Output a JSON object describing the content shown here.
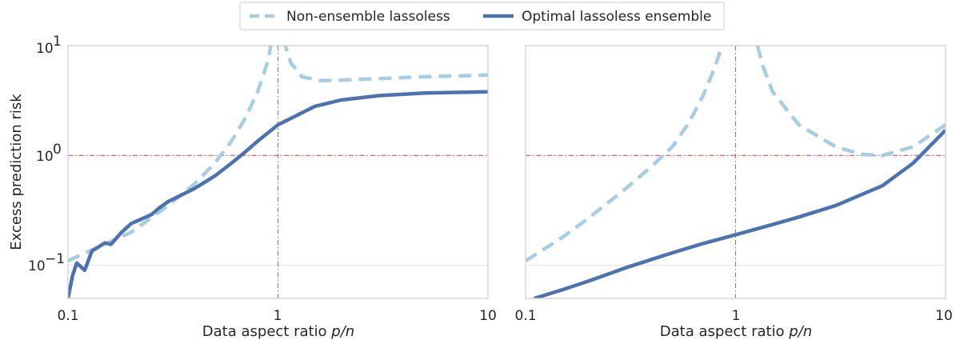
{
  "chart_data": [
    {
      "type": "line",
      "xscale": "log",
      "yscale": "log",
      "xlim": [
        0.1,
        10
      ],
      "ylim": [
        0.05,
        10
      ],
      "xlabel": "Data aspect ratio p/n",
      "ylabel": "Excess prediction risk",
      "x_ticks": [
        "0.1",
        "1",
        "10"
      ],
      "y_ticks": [
        "10^-1",
        "10^0",
        "10^1"
      ],
      "reference_lines": {
        "x": 1,
        "y": 1,
        "color": "#e05555"
      },
      "grid": true,
      "series": [
        {
          "name": "Non-ensemble lassoless",
          "style": "dashed",
          "color": "#a6cde2",
          "x": [
            0.1,
            0.2,
            0.3,
            0.4,
            0.5,
            0.6,
            0.7,
            0.8,
            0.9,
            0.95,
            1.05,
            1.15,
            1.3,
            1.6,
            2,
            3,
            5,
            10
          ],
          "y": [
            0.11,
            0.2,
            0.35,
            0.55,
            0.85,
            1.35,
            2.2,
            3.8,
            7.5,
            14,
            12,
            7,
            5.2,
            4.8,
            4.85,
            5.0,
            5.2,
            5.4
          ]
        },
        {
          "name": "Optimal lassoless ensemble",
          "style": "solid",
          "color": "#4c72b0",
          "x": [
            0.1,
            0.105,
            0.11,
            0.12,
            0.13,
            0.15,
            0.16,
            0.18,
            0.2,
            0.25,
            0.27,
            0.3,
            0.4,
            0.5,
            0.6,
            0.7,
            0.8,
            1,
            1.5,
            2,
            3,
            5,
            10
          ],
          "y": [
            0.05,
            0.08,
            0.105,
            0.09,
            0.135,
            0.16,
            0.155,
            0.2,
            0.24,
            0.29,
            0.33,
            0.38,
            0.5,
            0.65,
            0.85,
            1.08,
            1.35,
            1.9,
            2.8,
            3.2,
            3.5,
            3.7,
            3.8
          ]
        }
      ]
    },
    {
      "type": "line",
      "xscale": "log",
      "yscale": "log",
      "xlim": [
        0.1,
        10
      ],
      "ylim": [
        0.05,
        10
      ],
      "xlabel": "Data aspect ratio p/n",
      "ylabel": "",
      "x_ticks": [
        "0.1",
        "1",
        "10"
      ],
      "reference_lines": {
        "x": 1,
        "y": 1,
        "color": "#e05555"
      },
      "grid": true,
      "series": [
        {
          "name": "Non-ensemble lassoless",
          "style": "dashed",
          "color": "#a6cde2",
          "x": [
            0.1,
            0.15,
            0.2,
            0.3,
            0.4,
            0.5,
            0.6,
            0.7,
            0.8,
            0.9,
            1.2,
            1.35,
            1.5,
            2,
            3,
            4,
            5,
            7,
            10
          ],
          "y": [
            0.11,
            0.18,
            0.27,
            0.5,
            0.8,
            1.2,
            2.0,
            3.5,
            6.5,
            13,
            15,
            6.5,
            3.8,
            1.9,
            1.2,
            1.02,
            1.0,
            1.2,
            1.9
          ]
        },
        {
          "name": "Optimal lassoless ensemble",
          "style": "solid",
          "color": "#4c72b0",
          "x": [
            0.11,
            0.15,
            0.2,
            0.3,
            0.5,
            0.7,
            1,
            1.5,
            2,
            3,
            5,
            7,
            10
          ],
          "y": [
            0.05,
            0.06,
            0.072,
            0.095,
            0.13,
            0.158,
            0.19,
            0.235,
            0.275,
            0.35,
            0.53,
            0.85,
            1.7
          ]
        }
      ]
    }
  ],
  "legend": {
    "items": [
      {
        "label": "Non-ensemble lassoless",
        "style": "dashed",
        "color": "#a6cde2"
      },
      {
        "label": "Optimal lassoless ensemble",
        "style": "solid",
        "color": "#4c72b0"
      }
    ]
  },
  "axis_text": {
    "xlabel_prefix": "Data aspect ratio ",
    "xlabel_var": "p/n",
    "ylabel": "Excess prediction risk",
    "x_tick_labels": [
      "0.1",
      "1",
      "10"
    ],
    "y_tick_base": "10",
    "y_tick_exponents": [
      "1",
      "0",
      "−1"
    ]
  }
}
